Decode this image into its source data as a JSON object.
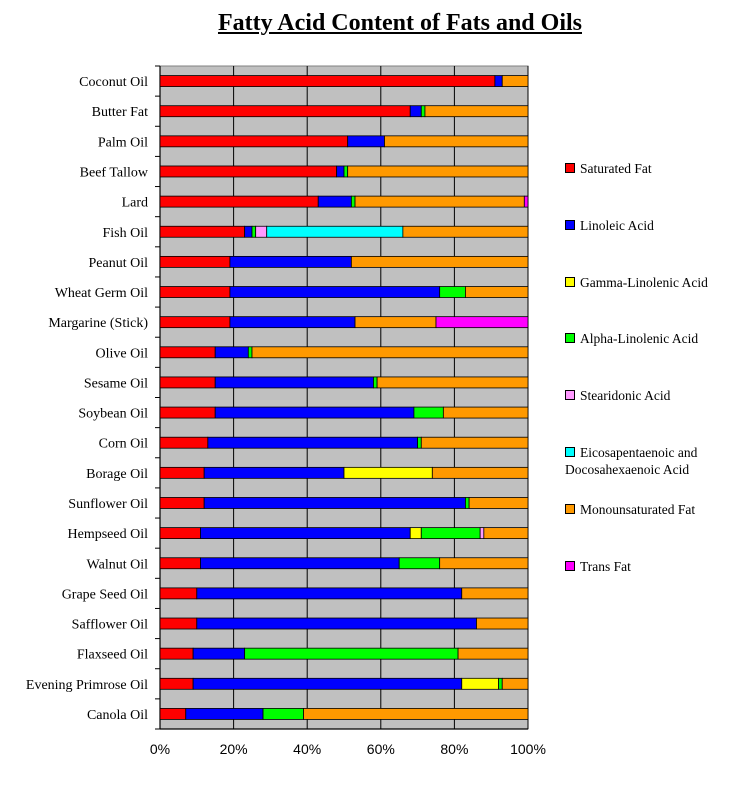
{
  "title": "Fatty Acid Content of Fats and Oils",
  "chart_data": {
    "type": "bar",
    "orientation": "horizontal",
    "stacked": "percent",
    "title": "Fatty Acid Content of Fats and Oils",
    "xlim": [
      0,
      100
    ],
    "xticks": [
      "0%",
      "20%",
      "40%",
      "60%",
      "80%",
      "100%"
    ],
    "grid": true,
    "legend_position": "right",
    "categories": [
      "Coconut Oil",
      "Butter Fat",
      "Palm Oil",
      "Beef Tallow",
      "Lard",
      "Fish Oil",
      "Peanut Oil",
      "Wheat Germ Oil",
      "Margarine (Stick)",
      "Olive Oil",
      "Sesame Oil",
      "Soybean Oil",
      "Corn Oil",
      "Borage Oil",
      "Sunflower Oil",
      "Hempseed Oil",
      "Walnut Oil",
      "Grape Seed Oil",
      "Safflower Oil",
      "Flaxseed Oil",
      "Evening Primrose Oil",
      "Canola Oil"
    ],
    "series": [
      {
        "name": "Saturated Fat",
        "color": "#ff0000",
        "values": [
          91,
          68,
          51,
          48,
          43,
          23,
          19,
          19,
          19,
          15,
          15,
          15,
          13,
          12,
          12,
          11,
          11,
          10,
          10,
          9,
          9,
          7
        ]
      },
      {
        "name": "Linoleic Acid",
        "color": "#0000ff",
        "values": [
          2,
          3,
          10,
          2,
          9,
          2,
          33,
          57,
          34,
          9,
          43,
          54,
          57,
          38,
          71,
          57,
          54,
          72,
          76,
          14,
          73,
          21
        ]
      },
      {
        "name": "Gamma-Linolenic Acid",
        "color": "#ffff00",
        "values": [
          0,
          0,
          0,
          0,
          0,
          0,
          0,
          0,
          0,
          0,
          0,
          0,
          0,
          24,
          0,
          3,
          0,
          0,
          0,
          0,
          10,
          0
        ]
      },
      {
        "name": "Alpha-Linolenic Acid",
        "color": "#00ff00",
        "values": [
          0,
          1,
          0,
          1,
          1,
          1,
          0,
          7,
          0,
          1,
          1,
          8,
          1,
          0,
          1,
          16,
          11,
          0,
          0,
          58,
          1,
          11
        ]
      },
      {
        "name": "Stearidonic Acid",
        "color": "#ff99ff",
        "values": [
          0,
          0,
          0,
          0,
          0,
          3,
          0,
          0,
          0,
          0,
          0,
          0,
          0,
          0,
          0,
          1,
          0,
          0,
          0,
          0,
          0,
          0
        ]
      },
      {
        "name": "Eicosapentaenoic and Docosahexaenoic Acid",
        "color": "#00ffff",
        "values": [
          0,
          0,
          0,
          0,
          0,
          37,
          0,
          0,
          0,
          0,
          0,
          0,
          0,
          0,
          0,
          0,
          0,
          0,
          0,
          0,
          0,
          0
        ]
      },
      {
        "name": "Monounsaturated Fat",
        "color": "#ff9900",
        "values": [
          7,
          28,
          39,
          49,
          46,
          34,
          48,
          17,
          22,
          75,
          41,
          23,
          29,
          26,
          16,
          12,
          24,
          18,
          14,
          19,
          7,
          61
        ]
      },
      {
        "name": "Trans Fat",
        "color": "#ff00ff",
        "values": [
          0,
          0,
          0,
          0,
          1,
          0,
          0,
          0,
          25,
          0,
          0,
          0,
          0,
          0,
          0,
          0,
          0,
          0,
          0,
          0,
          0,
          0
        ]
      }
    ],
    "legend": {
      "items": [
        {
          "label": "Saturated Fat",
          "color": "#ff0000"
        },
        {
          "label": "Linoleic Acid",
          "color": "#0000ff"
        },
        {
          "label": "Gamma-Linolenic Acid",
          "color": "#ffff00"
        },
        {
          "label": "Alpha-Linolenic Acid",
          "color": "#00ff00"
        },
        {
          "label": "Stearidonic Acid",
          "color": "#ff99ff"
        },
        {
          "label": "Eicosapentaenoic and\nDocosahexaenoic Acid",
          "color": "#00ffff"
        },
        {
          "label": "Monounsaturated Fat",
          "color": "#ff9900"
        },
        {
          "label": "Trans Fat",
          "color": "#ff00ff"
        }
      ]
    },
    "colors": {
      "plot_background": "#c0c0c0",
      "gridline": "#000000"
    }
  }
}
